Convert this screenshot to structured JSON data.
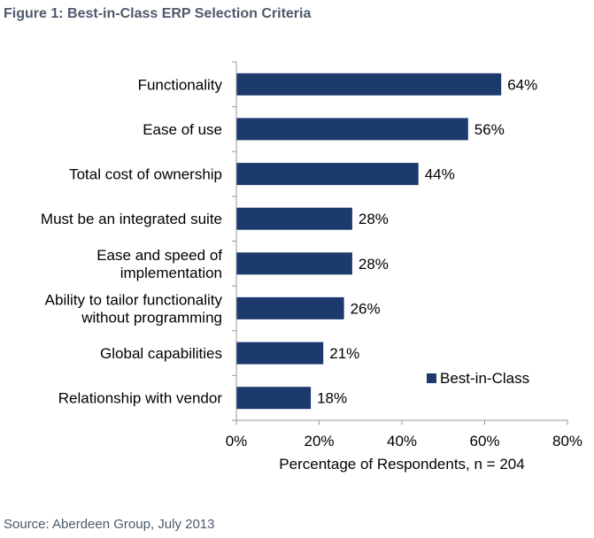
{
  "figure_title": "Figure 1: Best-in-Class ERP Selection Criteria",
  "source": "Source: Aberdeen Group, July 2013",
  "colors": {
    "bar": "#1c3a6e",
    "text": "#000000",
    "axis": "#999999",
    "title": "#4d5a6b"
  },
  "chart_data": {
    "type": "bar",
    "orientation": "horizontal",
    "categories": [
      [
        "Functionality"
      ],
      [
        "Ease of use"
      ],
      [
        "Total cost of ownership"
      ],
      [
        "Must be an integrated suite"
      ],
      [
        "Ease and speed of",
        "implementation"
      ],
      [
        "Ability to tailor functionality",
        "without programming"
      ],
      [
        "Global capabilities"
      ],
      [
        "Relationship with vendor"
      ]
    ],
    "series": [
      {
        "name": "Best-in-Class",
        "values": [
          64,
          56,
          44,
          28,
          28,
          26,
          21,
          18
        ]
      }
    ],
    "value_labels": [
      "64%",
      "56%",
      "44%",
      "28%",
      "28%",
      "26%",
      "21%",
      "18%"
    ],
    "xlim": [
      0,
      80
    ],
    "xticks": [
      0,
      20,
      40,
      60,
      80
    ],
    "xtick_labels": [
      "0%",
      "20%",
      "40%",
      "60%",
      "80%"
    ],
    "xlabel": "Percentage of Respondents, n = 204",
    "legend_position": "bottom-right",
    "grid": false
  }
}
